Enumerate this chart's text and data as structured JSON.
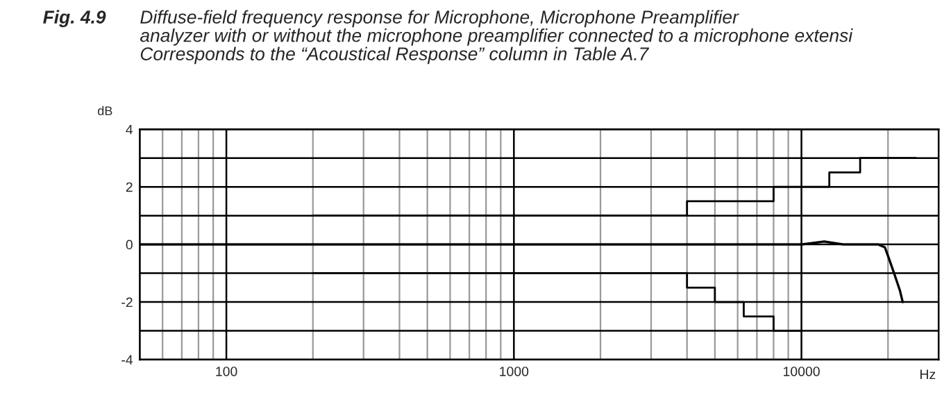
{
  "chart_data": {
    "type": "line",
    "title": "Fig. 4.9",
    "subtitle": "Diffuse-field frequency response for Microphone, Microphone Preamplifier\nanalyzer with or without the microphone preamplifier connected to a microphone extensi\nCorresponds to the “Acoustical Response” column in Table A.7",
    "xlabel": "Hz",
    "ylabel": "dB",
    "log": "x",
    "grid": true,
    "xlim": [
      50,
      30000
    ],
    "xticks": [
      100,
      1000,
      10000
    ],
    "ylim": [
      -4,
      4
    ],
    "yticks": [
      -4,
      {
        "value": -3,
        "label": null
      },
      -2,
      {
        "value": -1,
        "label": null
      },
      0,
      {
        "value": 1,
        "label": null
      },
      2,
      {
        "value": 3,
        "label": null
      },
      4
    ],
    "series": [
      {
        "color": "#000000",
        "x": [
          50,
          100,
          300,
          1000,
          2000,
          5000,
          10000,
          12000,
          14000,
          17000,
          18500,
          19500,
          20000,
          21000,
          22000,
          22500
        ],
        "values": [
          0,
          0,
          0,
          0,
          0,
          0,
          0,
          0.1,
          0,
          0,
          0,
          -0.1,
          -0.4,
          -1.0,
          -1.6,
          -2.0
        ]
      },
      {
        "type": "step",
        "color": "#000000",
        "x": [
          200,
          250,
          4000,
          8000,
          12500,
          16000,
          25000
        ],
        "values": [
          1,
          1,
          1.5,
          2,
          2.5,
          3,
          3
        ]
      },
      {
        "type": "step",
        "color": "#000000",
        "x": [
          200,
          250,
          4000,
          5000,
          6300,
          8000,
          10000
        ],
        "values": [
          -1,
          -1,
          -1.5,
          -2,
          -2.5,
          -3,
          -3
        ]
      }
    ]
  }
}
